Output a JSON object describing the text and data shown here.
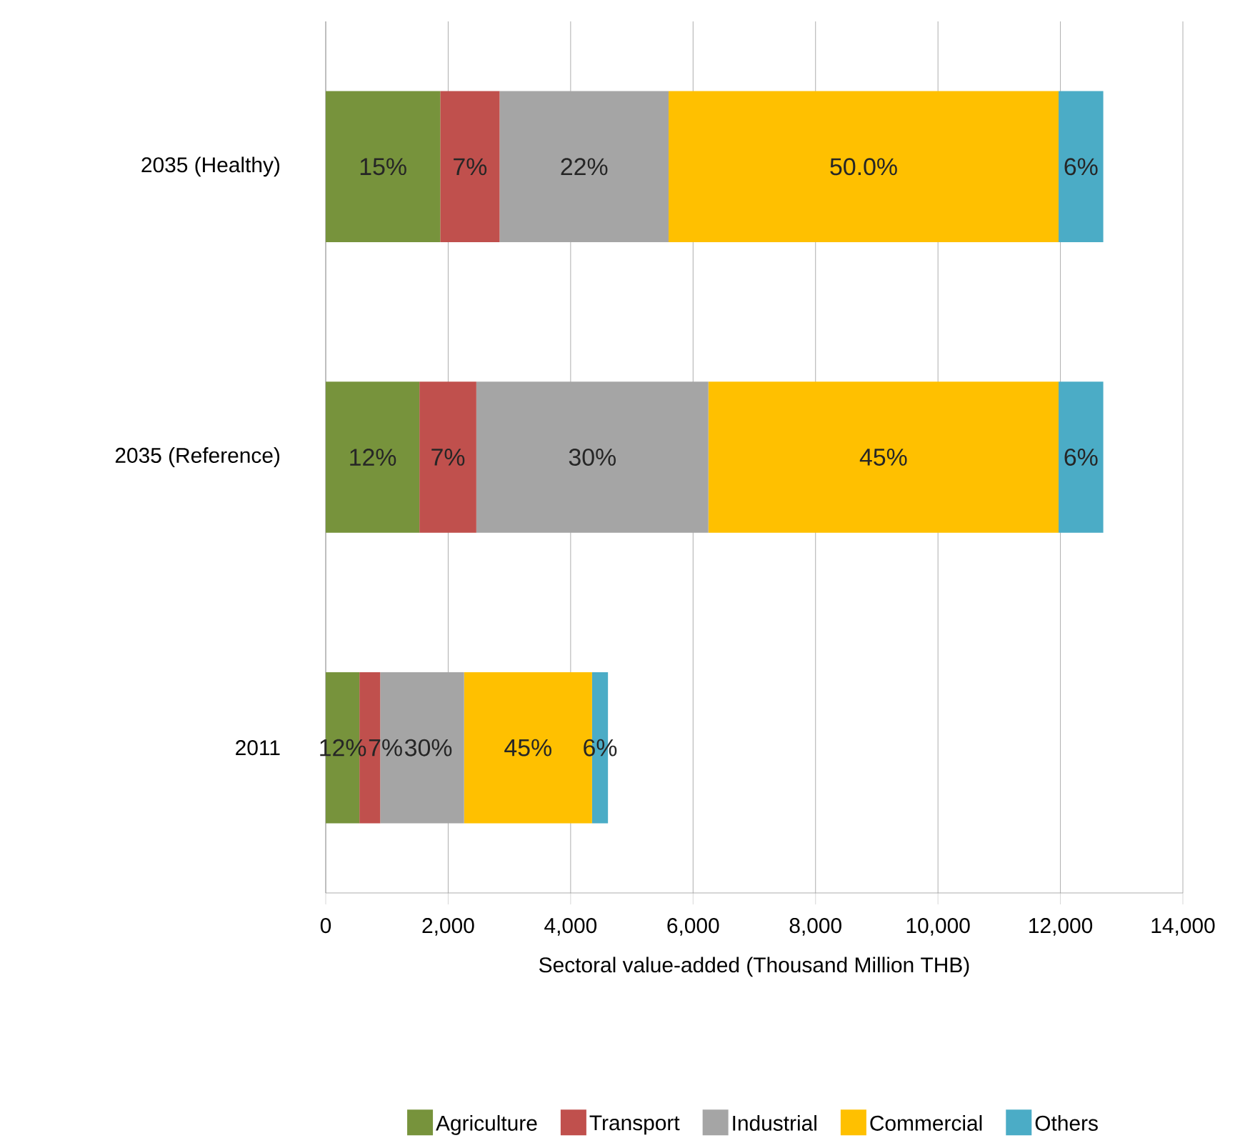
{
  "chart_data": {
    "type": "bar",
    "orientation": "horizontal",
    "stacked": true,
    "xlabel": "Sectoral value-added (Thousand Million THB)",
    "categories": [
      "2035 (Healthy)",
      "2035 (Reference)",
      "2011"
    ],
    "xlim": [
      0,
      14000
    ],
    "xticks": [
      0,
      {
        "value": 2000,
        "label": "2,000"
      },
      {
        "value": 4000,
        "label": "4,000"
      },
      {
        "value": 6000,
        "label": "6,000"
      },
      {
        "value": 8000,
        "label": "8,000"
      },
      {
        "value": 10000,
        "label": "10,000"
      },
      {
        "value": 12000,
        "label": "12,000"
      },
      {
        "value": 14000,
        "label": "14,000"
      }
    ],
    "grid": "x",
    "legend": "bottom",
    "annotations": [
      "15%",
      "7%",
      "22%",
      "50.0%",
      "6%",
      "12%",
      "7%",
      "30%",
      "45%",
      "6%",
      "12%",
      "7%",
      "30%",
      "45%",
      "6%"
    ],
    "series": [
      {
        "name": "Agriculture",
        "color": "#77933c",
        "values": [
          1870,
          1530,
          550
        ]
      },
      {
        "name": "Transport",
        "color": "#c0504d",
        "values": [
          970,
          930,
          340
        ]
      },
      {
        "name": "Industrial",
        "color": "#a5a5a5",
        "values": [
          2760,
          3790,
          1370
        ]
      },
      {
        "name": "Commercial",
        "color": "#ffc000",
        "values": [
          6370,
          5720,
          2090
        ]
      },
      {
        "name": "Others",
        "color": "#4bacc6",
        "values": [
          730,
          730,
          260
        ]
      }
    ]
  }
}
